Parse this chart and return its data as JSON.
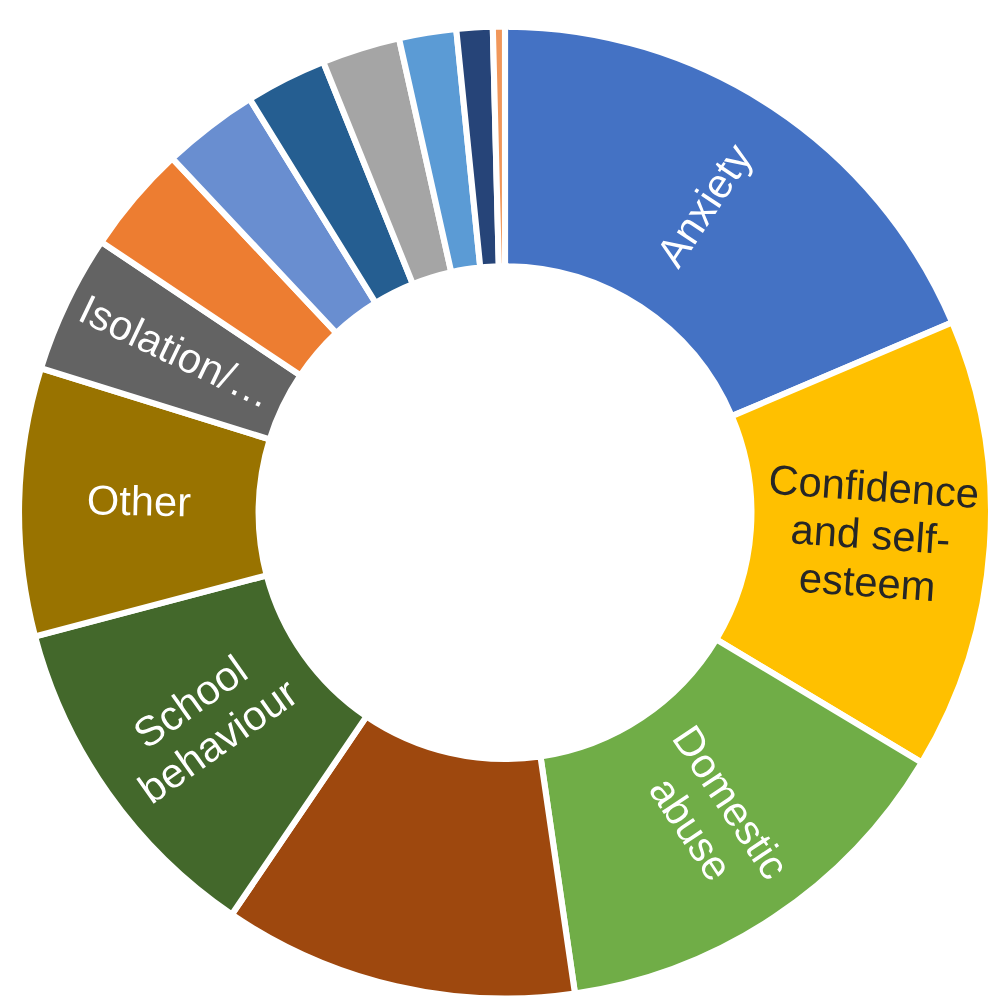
{
  "chart_data": {
    "type": "donut",
    "categories": [
      "Anxiety",
      "Confidence\nand self-\nesteem",
      "Domestic\nabuse",
      null,
      "School\nbehaviour",
      "Other",
      "Isolation/…",
      null,
      null,
      null,
      null,
      null,
      null,
      null
    ],
    "values": [
      18.6,
      15.0,
      14.1,
      11.8,
      11.4,
      8.9,
      4.6,
      3.6,
      3.2,
      2.7,
      2.6,
      1.9,
      1.2,
      0.4
    ],
    "colors": [
      "#4472c4",
      "#ffc000",
      "#70ad47",
      "#9e480e",
      "#43682b",
      "#997300",
      "#636363",
      "#ed7d31",
      "#698ed0",
      "#255e91",
      "#a5a5a5",
      "#5b9bd5",
      "#264478",
      "#f1975a"
    ]
  }
}
